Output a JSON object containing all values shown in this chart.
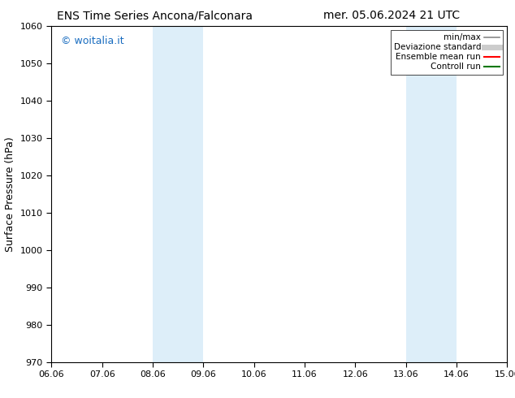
{
  "title_left": "ENS Time Series Ancona/Falconara",
  "title_right": "mer. 05.06.2024 21 UTC",
  "ylabel": "Surface Pressure (hPa)",
  "ylim": [
    970,
    1060
  ],
  "yticks": [
    970,
    980,
    990,
    1000,
    1010,
    1020,
    1030,
    1040,
    1050,
    1060
  ],
  "xtick_labels": [
    "06.06",
    "07.06",
    "08.06",
    "09.06",
    "10.06",
    "11.06",
    "12.06",
    "13.06",
    "14.06",
    "15.06"
  ],
  "xtick_positions": [
    0,
    1,
    2,
    3,
    4,
    5,
    6,
    7,
    8,
    9
  ],
  "xlim": [
    0,
    9
  ],
  "shaded_bands": [
    {
      "x_start": 2,
      "x_end": 3,
      "color": "#ddeef9"
    },
    {
      "x_start": 7,
      "x_end": 8,
      "color": "#ddeef9"
    }
  ],
  "watermark": "© woitalia.it",
  "watermark_color": "#1a6dc0",
  "background_color": "#ffffff",
  "plot_bg_color": "#ffffff",
  "legend_entries": [
    {
      "label": "min/max",
      "color": "#888888",
      "linewidth": 1.2
    },
    {
      "label": "Deviazione standard",
      "color": "#cccccc",
      "linewidth": 5.0
    },
    {
      "label": "Ensemble mean run",
      "color": "#ff0000",
      "linewidth": 1.5
    },
    {
      "label": "Controll run",
      "color": "#007700",
      "linewidth": 1.5
    }
  ],
  "title_fontsize": 10,
  "tick_fontsize": 8,
  "ylabel_fontsize": 9,
  "watermark_fontsize": 9
}
